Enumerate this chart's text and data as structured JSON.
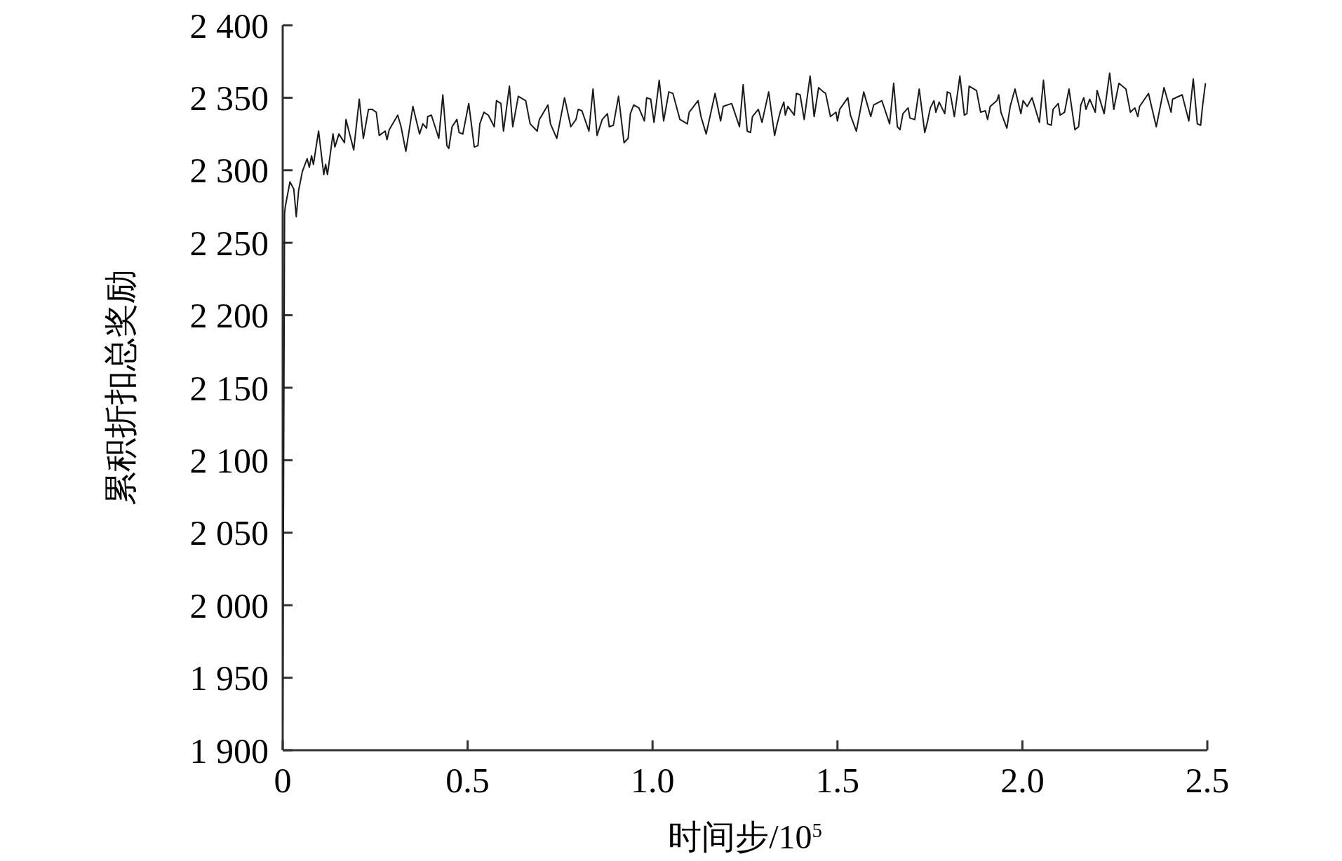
{
  "chart_data": {
    "type": "line",
    "xlabel": "时间步/10$^{5}$",
    "ylabel": "累积折扣总奖励",
    "xlim": [
      0,
      2.5
    ],
    "xticks": [
      0,
      {
        "value": 0.5,
        "label": "0.5"
      },
      {
        "value": 1,
        "label": "1.0"
      },
      {
        "value": 1.5,
        "label": "1.5"
      },
      {
        "value": 2,
        "label": "2.0"
      },
      {
        "value": 2.5,
        "label": "2.5"
      }
    ],
    "ylim": [
      1900,
      2400
    ],
    "yticks": [
      {
        "value": 1900,
        "label": "1 900"
      },
      {
        "value": 1950,
        "label": "1 950"
      },
      {
        "value": 2000,
        "label": "2 000"
      },
      {
        "value": 2050,
        "label": "2 050"
      },
      {
        "value": 2100,
        "label": "2 100"
      },
      {
        "value": 2150,
        "label": "2 150"
      },
      {
        "value": 2200,
        "label": "2 200"
      },
      {
        "value": 2250,
        "label": "2 250"
      },
      {
        "value": 2300,
        "label": "2 300"
      },
      {
        "value": 2350,
        "label": "2 350"
      },
      {
        "value": 2400,
        "label": "2 400"
      }
    ],
    "grid": false,
    "marker": "none",
    "line_style": "solid",
    "series": [
      {
        "color": "#1a1a1a",
        "x": [
          0,
          0.005,
          0.007,
          0.0196,
          0.03,
          0.0366,
          0.043,
          0.053,
          0.066,
          0.072,
          0.078,
          0.083,
          0.097,
          0.111,
          0.116,
          0.121,
          0.136,
          0.141,
          0.152,
          0.167,
          0.171,
          0.192,
          0.207,
          0.218,
          0.232,
          0.242,
          0.253,
          0.261,
          0.277,
          0.282,
          0.288,
          0.311,
          0.32,
          0.333,
          0.352,
          0.37,
          0.379,
          0.389,
          0.392,
          0.402,
          0.422,
          0.433,
          0.444,
          0.449,
          0.458,
          0.471,
          0.477,
          0.487,
          0.503,
          0.518,
          0.528,
          0.533,
          0.544,
          0.556,
          0.572,
          0.578,
          0.59,
          0.597,
          0.613,
          0.622,
          0.637,
          0.657,
          0.669,
          0.688,
          0.694,
          0.717,
          0.724,
          0.741,
          0.762,
          0.779,
          0.793,
          0.799,
          0.809,
          0.828,
          0.839,
          0.85,
          0.864,
          0.878,
          0.883,
          0.894,
          0.908,
          0.923,
          0.934,
          0.94,
          0.949,
          0.963,
          0.978,
          0.984,
          0.995,
          1.004,
          1.018,
          1.03,
          1.044,
          1.055,
          1.074,
          1.094,
          1.099,
          1.123,
          1.131,
          1.145,
          1.169,
          1.184,
          1.191,
          1.214,
          1.235,
          1.245,
          1.256,
          1.265,
          1.27,
          1.286,
          1.296,
          1.314,
          1.33,
          1.336,
          1.346,
          1.355,
          1.359,
          1.366,
          1.383,
          1.389,
          1.399,
          1.41,
          1.426,
          1.437,
          1.449,
          1.462,
          1.468,
          1.481,
          1.496,
          1.5,
          1.506,
          1.528,
          1.535,
          1.551,
          1.571,
          1.59,
          1.598,
          1.62,
          1.641,
          1.652,
          1.662,
          1.669,
          1.677,
          1.691,
          1.696,
          1.709,
          1.721,
          1.736,
          1.743,
          1.751,
          1.761,
          1.766,
          1.775,
          1.79,
          1.797,
          1.805,
          1.816,
          1.831,
          1.843,
          1.85,
          1.856,
          1.876,
          1.887,
          1.9,
          1.906,
          1.913,
          1.931,
          1.936,
          1.942,
          1.958,
          1.967,
          1.98,
          1.996,
          2.002,
          2.013,
          2.026,
          2.046,
          2.057,
          2.068,
          2.078,
          2.083,
          2.097,
          2.102,
          2.114,
          2.126,
          2.142,
          2.152,
          2.158,
          2.166,
          2.172,
          2.182,
          2.197,
          2.202,
          2.221,
          2.236,
          2.247,
          2.261,
          2.28,
          2.292,
          2.304,
          2.312,
          2.317,
          2.341,
          2.351,
          2.362,
          2.383,
          2.402,
          2.406,
          2.432,
          2.45,
          2.462,
          2.473,
          2.482,
          2.487,
          2.495
        ],
        "values": [
          1920,
          2270,
          2275,
          2292,
          2287,
          2268,
          2286,
          2299,
          2308,
          2302,
          2310,
          2304,
          2327,
          2297,
          2304,
          2297,
          2325,
          2316,
          2325,
          2319,
          2335,
          2314,
          2349,
          2322,
          2342,
          2342,
          2340,
          2324,
          2327,
          2321,
          2328,
          2338,
          2330,
          2313,
          2344,
          2325,
          2332,
          2329,
          2337,
          2338,
          2322,
          2352,
          2317,
          2315,
          2330,
          2335,
          2326,
          2325,
          2346,
          2316,
          2317,
          2332,
          2340,
          2338,
          2330,
          2348,
          2346,
          2327,
          2358,
          2330,
          2351,
          2348,
          2332,
          2327,
          2335,
          2345,
          2332,
          2322,
          2350,
          2330,
          2335,
          2342,
          2341,
          2327,
          2356,
          2324,
          2335,
          2339,
          2330,
          2331,
          2351,
          2319,
          2322,
          2339,
          2345,
          2343,
          2334,
          2350,
          2349,
          2333,
          2362,
          2334,
          2354,
          2353,
          2335,
          2332,
          2340,
          2348,
          2337,
          2325,
          2353,
          2334,
          2344,
          2346,
          2330,
          2359,
          2327,
          2326,
          2337,
          2342,
          2333,
          2354,
          2324,
          2331,
          2341,
          2347,
          2338,
          2344,
          2338,
          2353,
          2352,
          2335,
          2365,
          2337,
          2357,
          2354,
          2353,
          2337,
          2340,
          2334,
          2342,
          2350,
          2338,
          2327,
          2354,
          2337,
          2345,
          2348,
          2332,
          2360,
          2330,
          2328,
          2339,
          2343,
          2336,
          2335,
          2356,
          2326,
          2333,
          2343,
          2348,
          2340,
          2347,
          2339,
          2354,
          2353,
          2337,
          2365,
          2338,
          2339,
          2358,
          2355,
          2340,
          2341,
          2335,
          2344,
          2348,
          2352,
          2340,
          2329,
          2344,
          2356,
          2339,
          2348,
          2344,
          2350,
          2333,
          2362,
          2332,
          2331,
          2342,
          2346,
          2338,
          2340,
          2356,
          2328,
          2330,
          2345,
          2350,
          2342,
          2349,
          2340,
          2355,
          2339,
          2367,
          2342,
          2360,
          2356,
          2340,
          2343,
          2337,
          2344,
          2353,
          2342,
          2330,
          2357,
          2340,
          2349,
          2352,
          2334,
          2363,
          2332,
          2331,
          2344,
          2360
        ]
      }
    ]
  }
}
